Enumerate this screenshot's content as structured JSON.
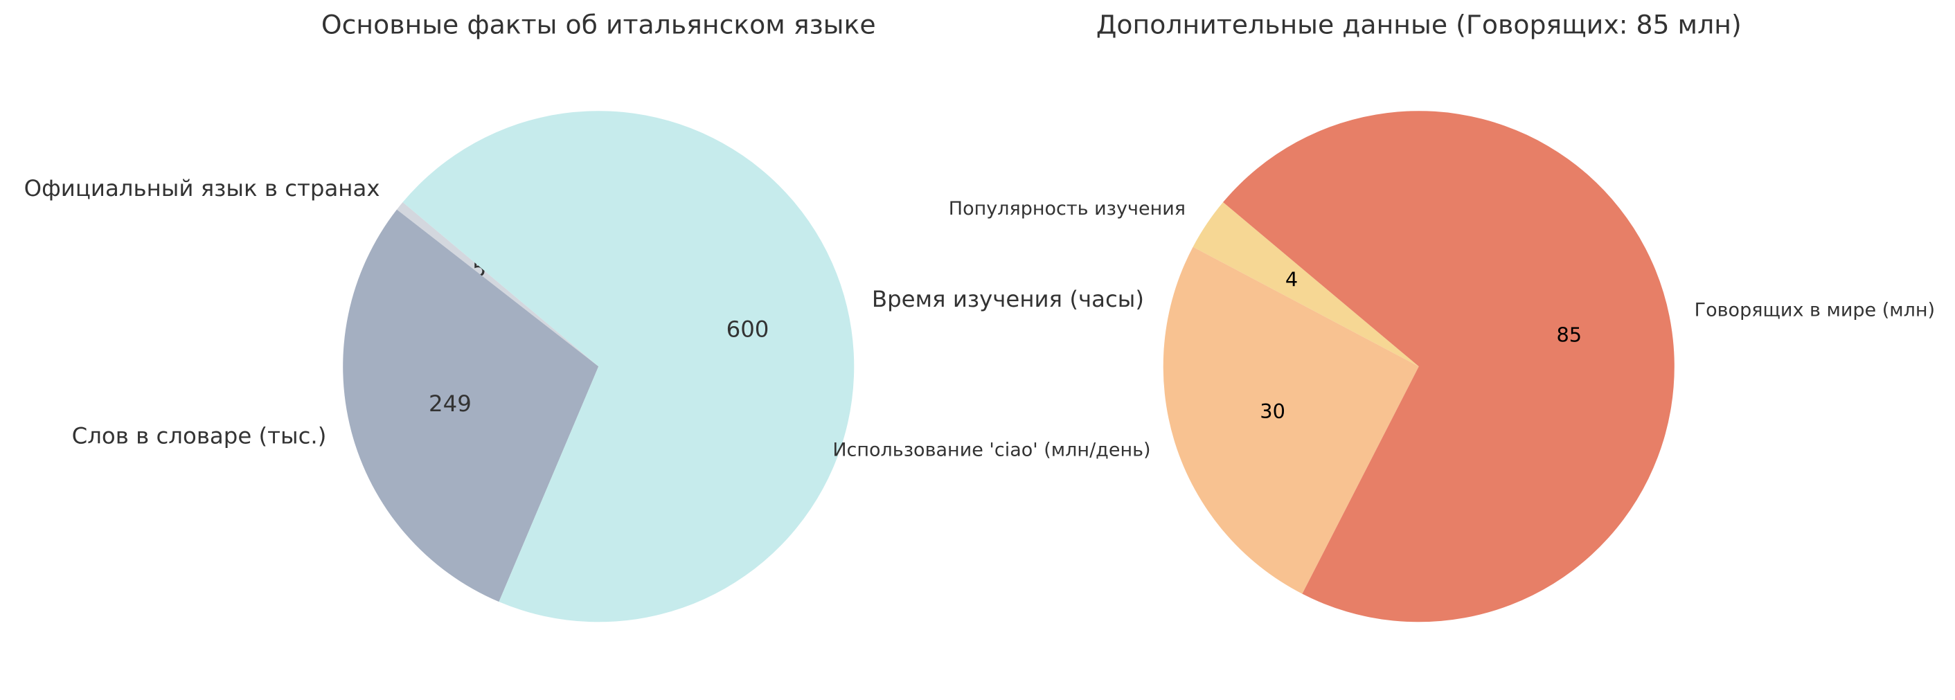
{
  "chart_data": [
    {
      "type": "pie",
      "title": "Основные факты об итальянском языке",
      "categories": [
        "Официальный язык в странах",
        "Слов в словаре (тыс.)",
        "Время изучения (часы)"
      ],
      "values": [
        5,
        249,
        600
      ],
      "colors": [
        "#d3d7de",
        "#a4afc1",
        "#c6ebec"
      ]
    },
    {
      "type": "pie",
      "title": "Дополнительные данные (Говорящих: 85 млн)",
      "categories": [
        "Популярность изучения",
        "Использование 'ciao' (млн/день)",
        "Говорящих в мире (млн)"
      ],
      "values": [
        4,
        30,
        85
      ],
      "colors": [
        "#f6d794",
        "#f8c291",
        "#e77f67"
      ]
    }
  ]
}
